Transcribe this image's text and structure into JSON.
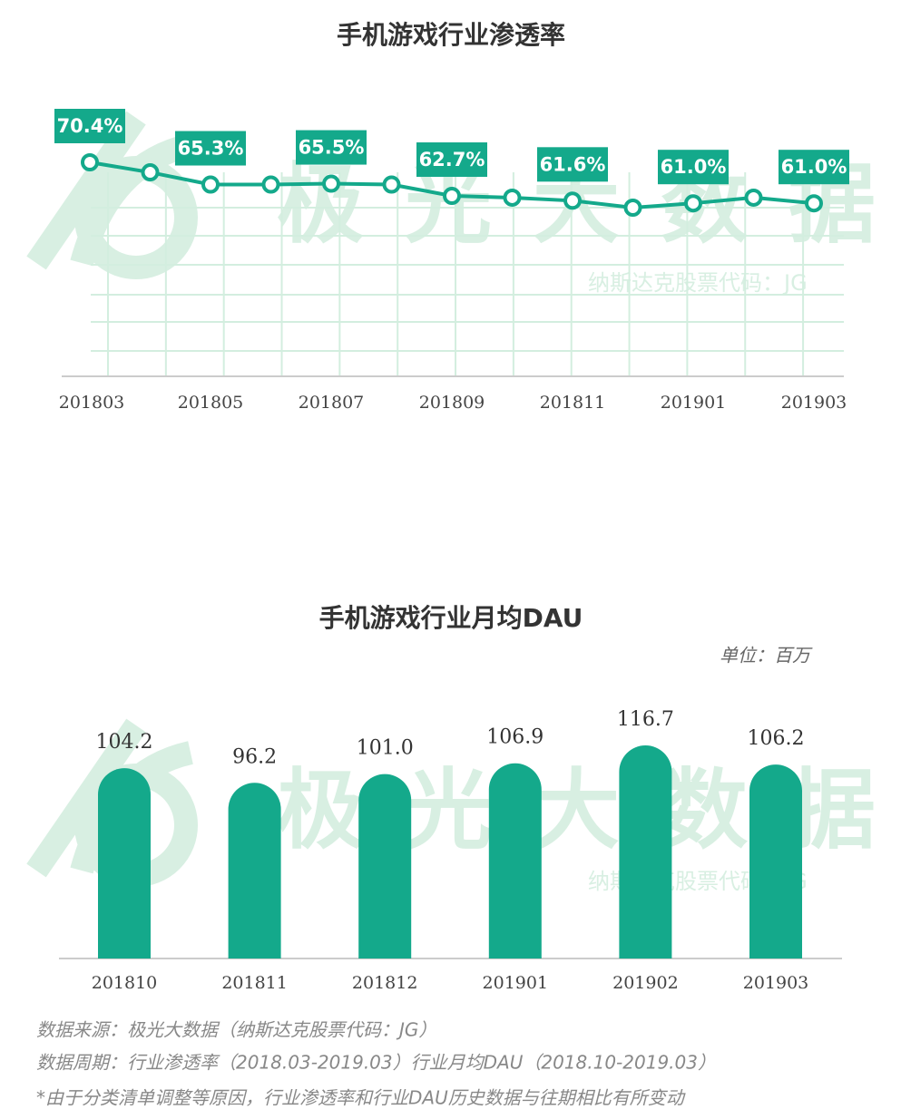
{
  "watermark": {
    "brand": "极光大数据",
    "ticker": "纳斯达克股票代码：JG"
  },
  "chart_data": [
    {
      "type": "line",
      "title": "手机游戏行业渗透率",
      "categories": [
        "201803",
        null,
        "201805",
        null,
        "201807",
        null,
        "201809",
        null,
        "201811",
        null,
        "201901",
        null,
        "201903"
      ],
      "values": [
        70.4,
        68.1,
        65.3,
        65.3,
        65.5,
        65.3,
        62.7,
        62.3,
        61.6,
        60.0,
        61.0,
        62.3,
        61.0
      ],
      "value_labels": [
        "70.4%",
        null,
        "65.3%",
        null,
        "65.5%",
        null,
        "62.7%",
        null,
        "61.6%",
        null,
        "61.0%",
        null,
        "61.0%"
      ],
      "color": "#14a98b",
      "grid": true
    },
    {
      "type": "bar",
      "title": "手机游戏行业月均DAU",
      "subtitle": "单位：百万",
      "categories": [
        "201810",
        "201811",
        "201812",
        "201901",
        "201902",
        "201903"
      ],
      "values": [
        104.2,
        96.2,
        101.0,
        106.9,
        116.7,
        106.2
      ],
      "value_labels": [
        "104.2",
        "96.2",
        "101.0",
        "106.9",
        "116.7",
        "106.2"
      ],
      "color": "#14a98b"
    }
  ],
  "footnotes": [
    "数据来源：极光大数据（纳斯达克股票代码：JG）",
    "数据周期：行业渗透率（2018.03-2019.03）行业月均DAU（2018.10-2019.03）",
    "*由于分类清单调整等原因，行业渗透率和行业DAU历史数据与往期相比有所变动"
  ]
}
